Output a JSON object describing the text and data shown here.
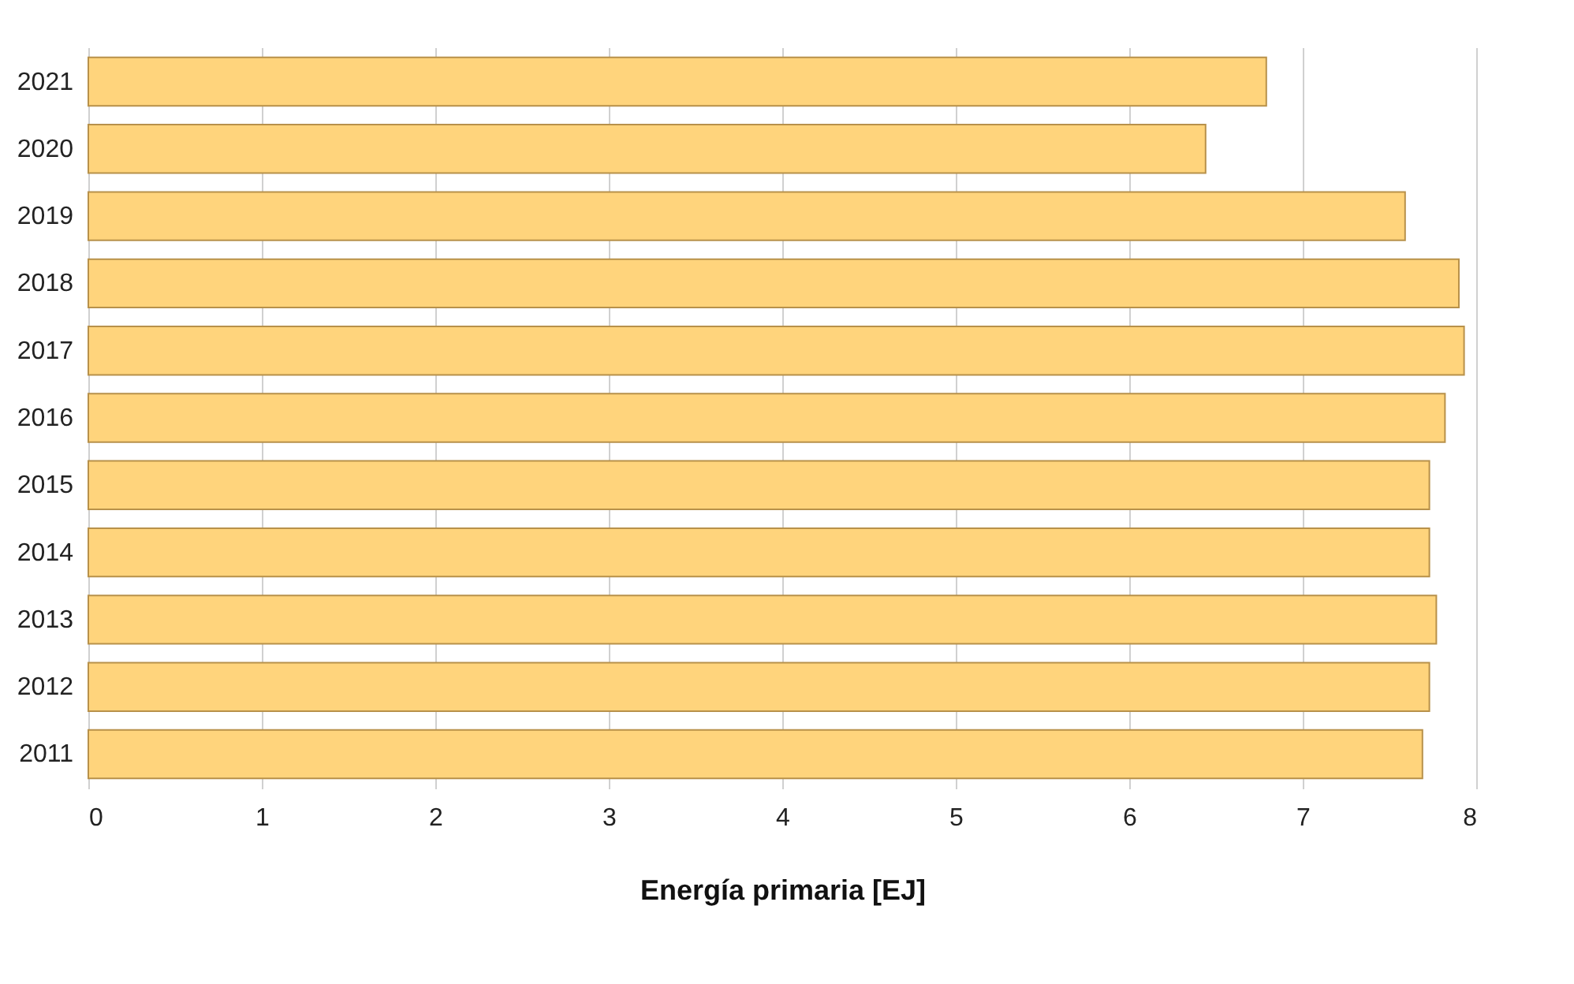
{
  "chart_data": {
    "type": "bar",
    "orientation": "horizontal",
    "xlabel": "Energía primaria [EJ]",
    "categories": [
      "2021",
      "2020",
      "2019",
      "2018",
      "2017",
      "2016",
      "2015",
      "2014",
      "2013",
      "2012",
      "2011"
    ],
    "values": [
      6.79,
      6.44,
      7.59,
      7.9,
      7.93,
      7.82,
      7.73,
      7.73,
      7.77,
      7.73,
      7.69
    ],
    "color": "#ffd47c",
    "xlim": [
      0,
      8
    ],
    "xticks": [
      0,
      1,
      2,
      3,
      4,
      5,
      6,
      7,
      8
    ],
    "grid": "x"
  }
}
